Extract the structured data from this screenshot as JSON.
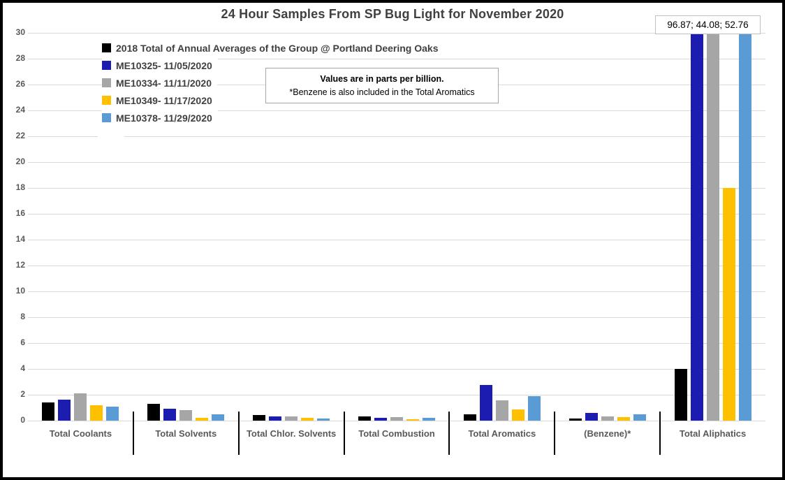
{
  "chart_data": {
    "type": "bar",
    "title": "24 Hour Samples From SP Bug Light for November 2020",
    "categories": [
      "Total Coolants",
      "Total Solvents",
      "Total Chlor. Solvents",
      "Total Combustion",
      "Total Aromatics",
      "(Benzene)*",
      "Total Aliphatics"
    ],
    "series": [
      {
        "name": "2018 Total of Annual Averages of the Group @ Portland Deering Oaks",
        "color": "#000000",
        "values": [
          1.4,
          1.3,
          0.45,
          0.3,
          0.5,
          0.15,
          4.0
        ]
      },
      {
        "name": "ME10325- 11/05/2020",
        "color": "#1C1CB0",
        "values": [
          1.6,
          0.9,
          0.3,
          0.2,
          2.75,
          0.6,
          96.87
        ]
      },
      {
        "name": "ME10334- 11/11/2020",
        "color": "#A6A6A6",
        "values": [
          2.1,
          0.8,
          0.35,
          0.25,
          1.55,
          0.35,
          44.08
        ]
      },
      {
        "name": "ME10349- 11/17/2020",
        "color": "#FFC000",
        "values": [
          1.2,
          0.2,
          0.2,
          0.1,
          0.85,
          0.25,
          18.0
        ]
      },
      {
        "name": "ME10378- 11/29/2020",
        "color": "#5B9BD5",
        "values": [
          1.1,
          0.5,
          0.15,
          0.2,
          1.9,
          0.5,
          52.76
        ]
      }
    ],
    "ylim": [
      0,
      30
    ],
    "ytick_step": 2,
    "grid": true,
    "legend_position": "top-left inside plot area",
    "annotation": "96.87; 44.08; 52.76",
    "note": {
      "line1": "Values are in parts per billion.",
      "line2": "*Benzene is also included in the Total Aromatics"
    },
    "ui_colors": {
      "title_text": "#404040",
      "axis_text": "#595959",
      "gridline": "#D9D9D9",
      "frame_border": "#000000"
    }
  }
}
